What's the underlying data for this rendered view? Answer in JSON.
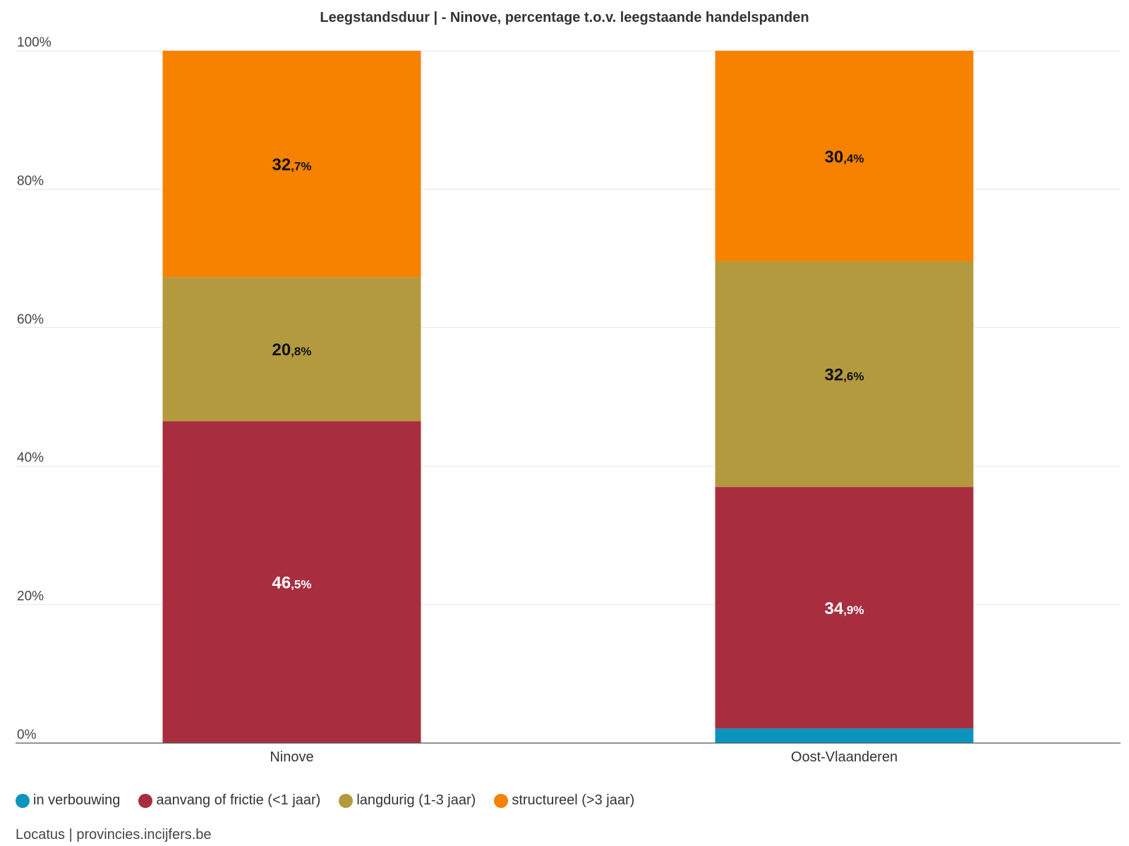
{
  "chart_data": {
    "type": "bar",
    "stacked": true,
    "title": "Leegstandsduur | - Ninove, percentage t.o.v. leegstaande handelspanden",
    "xlabel": "",
    "ylabel": "",
    "ylim": [
      0,
      100
    ],
    "yticks": [
      "0%",
      "20%",
      "40%",
      "60%",
      "80%",
      "100%"
    ],
    "ytick_values": [
      0,
      20,
      40,
      60,
      80,
      100
    ],
    "categories": [
      "Ninove",
      "Oost-Vlaanderen"
    ],
    "series": [
      {
        "name": "in verbouwing",
        "color": "#0b95be",
        "values": [
          0,
          2.1
        ],
        "labels": [
          "",
          ""
        ],
        "label_color": "#ffffff"
      },
      {
        "name": "aanvang of frictie (<1 jaar)",
        "color": "#a82e3f",
        "values": [
          46.5,
          34.9
        ],
        "labels": [
          "46,5%",
          "34,9%"
        ],
        "label_color": "#ffffff"
      },
      {
        "name": "langdurig (1-3 jaar)",
        "color": "#b39a3e",
        "values": [
          20.8,
          32.6
        ],
        "labels": [
          "20,8%",
          "32,6%"
        ],
        "label_color": "#111111"
      },
      {
        "name": "structureel (>3 jaar)",
        "color": "#f78200",
        "values": [
          32.7,
          30.4
        ],
        "labels": [
          "32,7%",
          "30,4%"
        ],
        "label_color": "#111111"
      }
    ],
    "legend": "bottom-left",
    "grid": true
  },
  "source": "Locatus | provincies.incijfers.be"
}
